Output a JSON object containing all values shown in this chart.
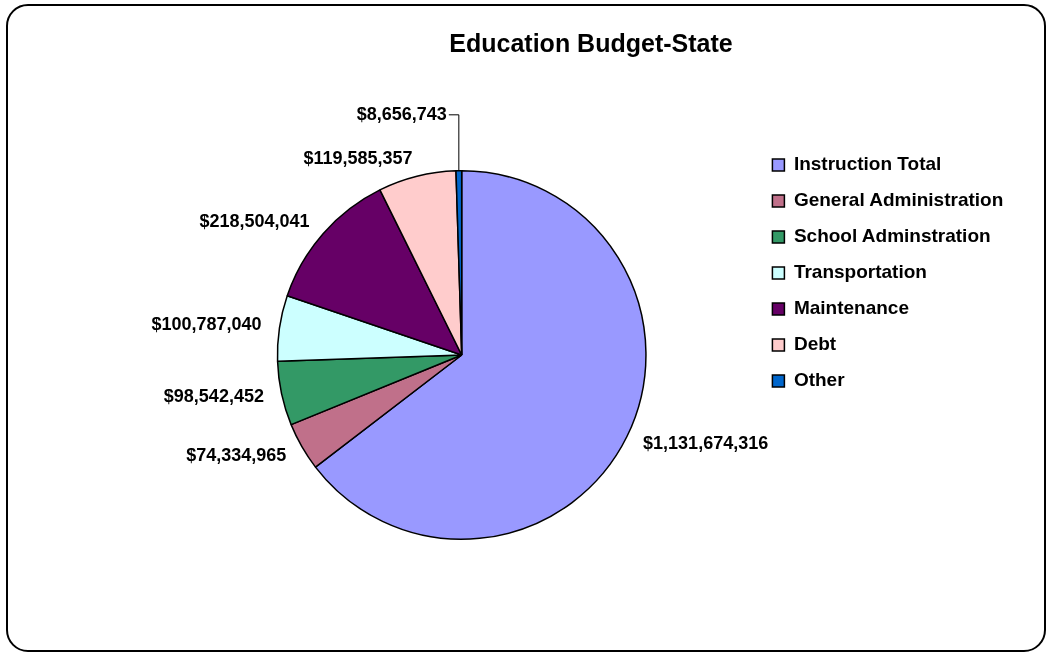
{
  "chart_data": {
    "type": "pie",
    "title": "Education Budget-State",
    "categories": [
      "Instruction Total",
      "General Administration",
      "School Adminstration",
      "Transportation",
      "Maintenance",
      "Debt",
      "Other"
    ],
    "values": [
      1131674316,
      74334965,
      98542452,
      100787040,
      218504041,
      119585357,
      8656743
    ],
    "value_labels": [
      "$1,131,674,316",
      "$74,334,965",
      "$98,542,452",
      "$100,787,040",
      "$218,504,041",
      "$119,585,357",
      "$8,656,743"
    ],
    "colors": [
      "#9999ff",
      "#c0708a",
      "#339966",
      "#ccffff",
      "#660066",
      "#ffcccc",
      "#0066cc"
    ],
    "legend": "right"
  }
}
